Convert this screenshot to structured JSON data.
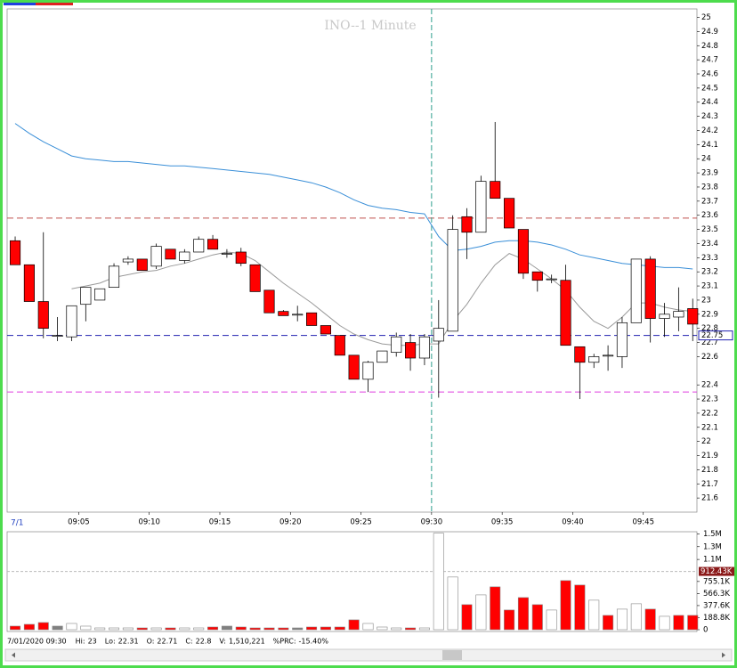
{
  "chart_data": [
    {
      "type": "candlestick",
      "title": "INO--1 Minute",
      "x_start_label": "7/1",
      "x": [
        0,
        1,
        2,
        3,
        4,
        5,
        6,
        7,
        8,
        9,
        10,
        11,
        12,
        13,
        14,
        15,
        16,
        17,
        18,
        19,
        20,
        21,
        22,
        23,
        24,
        25,
        26,
        27,
        28,
        29,
        30,
        31,
        32,
        33,
        34,
        35,
        36,
        37,
        38,
        39,
        40,
        41,
        42,
        43,
        44,
        45,
        46,
        47,
        48
      ],
      "open": [
        23.42,
        23.25,
        22.99,
        22.75,
        22.74,
        22.97,
        23.0,
        23.09,
        23.27,
        23.29,
        23.24,
        23.36,
        23.28,
        23.34,
        23.43,
        23.33,
        23.34,
        23.25,
        23.07,
        22.92,
        22.9,
        22.91,
        22.82,
        22.75,
        22.61,
        22.44,
        22.56,
        22.63,
        22.7,
        22.59,
        22.71,
        22.78,
        23.59,
        23.48,
        23.84,
        23.72,
        23.5,
        23.2,
        23.15,
        23.14,
        22.67,
        22.56,
        22.61,
        22.6,
        22.84,
        23.29,
        22.87,
        22.88,
        22.94
      ],
      "high": [
        23.45,
        23.25,
        23.48,
        22.88,
        22.96,
        23.09,
        23.08,
        23.26,
        23.31,
        23.29,
        23.4,
        23.36,
        23.36,
        23.45,
        23.46,
        23.36,
        23.37,
        23.25,
        23.07,
        22.93,
        22.96,
        22.91,
        22.82,
        22.75,
        22.61,
        22.57,
        22.64,
        22.77,
        22.76,
        22.76,
        23.0,
        23.6,
        23.65,
        23.88,
        24.26,
        23.72,
        23.5,
        23.2,
        23.18,
        23.25,
        22.67,
        22.62,
        22.68,
        22.88,
        23.29,
        23.31,
        22.98,
        23.09,
        23.01
      ],
      "low": [
        23.25,
        22.99,
        22.73,
        22.71,
        22.71,
        22.85,
        23.0,
        23.09,
        23.25,
        23.21,
        23.22,
        23.29,
        23.26,
        23.34,
        23.36,
        23.3,
        23.24,
        23.06,
        22.91,
        22.89,
        22.85,
        22.82,
        22.76,
        22.61,
        22.44,
        22.35,
        22.56,
        22.6,
        22.5,
        22.54,
        22.31,
        22.78,
        23.29,
        23.48,
        23.72,
        23.51,
        23.15,
        23.06,
        23.12,
        22.68,
        22.3,
        22.52,
        22.5,
        22.52,
        22.84,
        22.7,
        22.74,
        22.78,
        22.71
      ],
      "close": [
        23.25,
        22.99,
        22.8,
        22.75,
        22.96,
        23.09,
        23.08,
        23.24,
        23.29,
        23.21,
        23.38,
        23.29,
        23.34,
        23.43,
        23.36,
        23.33,
        23.26,
        23.06,
        22.91,
        22.89,
        22.9,
        22.82,
        22.76,
        22.61,
        22.44,
        22.56,
        22.64,
        22.74,
        22.59,
        22.74,
        22.8,
        23.5,
        23.48,
        23.84,
        23.72,
        23.51,
        23.19,
        23.14,
        23.15,
        22.68,
        22.56,
        22.6,
        22.61,
        22.84,
        23.29,
        22.87,
        22.9,
        22.92,
        22.83
      ],
      "up_color": "#ffffff",
      "down_color": "#ff0000",
      "lines": [
        {
          "color": "#3a8fd8",
          "values": [
            24.25,
            24.18,
            24.12,
            24.07,
            24.02,
            24.0,
            23.99,
            23.98,
            23.98,
            23.97,
            23.96,
            23.95,
            23.95,
            23.94,
            23.93,
            23.92,
            23.91,
            23.9,
            23.89,
            23.87,
            23.85,
            23.83,
            23.8,
            23.76,
            23.71,
            23.67,
            23.65,
            23.64,
            23.62,
            23.61,
            23.45,
            23.35,
            23.36,
            23.38,
            23.41,
            23.42,
            23.42,
            23.41,
            23.39,
            23.36,
            23.32,
            23.3,
            23.28,
            23.26,
            23.25,
            23.24,
            23.23,
            23.23,
            23.22
          ]
        },
        {
          "color": "#999999",
          "values": [
            null,
            null,
            null,
            null,
            23.08,
            23.1,
            23.12,
            23.16,
            23.18,
            23.2,
            23.21,
            23.24,
            23.26,
            23.29,
            23.32,
            23.34,
            23.33,
            23.28,
            23.2,
            23.12,
            23.05,
            22.98,
            22.9,
            22.82,
            22.76,
            22.72,
            22.69,
            22.68,
            22.68,
            22.69,
            22.69,
            22.85,
            22.97,
            23.12,
            23.25,
            23.33,
            23.29,
            23.22,
            23.15,
            23.07,
            22.95,
            22.85,
            22.8,
            22.88,
            22.98,
            22.98,
            22.95,
            22.93,
            22.92
          ]
        }
      ],
      "hlines": [
        {
          "value": 23.58,
          "color": "#c0504d"
        },
        {
          "value": 22.75,
          "color": "#2020b0",
          "labeled": true
        },
        {
          "value": 22.35,
          "color": "#e040e0"
        }
      ],
      "vline": {
        "value": 29.5,
        "color": "#2e9e8e"
      },
      "xlim": [
        -0.57,
        48.3
      ],
      "ylim": [
        21.5,
        25.06
      ],
      "xticks": [
        {
          "value": 4.5,
          "label": "09:05"
        },
        {
          "value": 9.5,
          "label": "09:10"
        },
        {
          "value": 14.5,
          "label": "09:15"
        },
        {
          "value": 19.5,
          "label": "09:20"
        },
        {
          "value": 24.5,
          "label": "09:25"
        },
        {
          "value": 29.5,
          "label": "09:30"
        },
        {
          "value": 34.5,
          "label": "09:35"
        },
        {
          "value": 39.5,
          "label": "09:40"
        },
        {
          "value": 44.5,
          "label": "09:45"
        }
      ],
      "yticks": [
        25,
        24.9,
        24.8,
        24.7,
        24.6,
        24.5,
        24.4,
        24.3,
        24.2,
        24.1,
        24,
        23.9,
        23.8,
        23.7,
        23.6,
        23.5,
        23.4,
        23.3,
        23.2,
        23.1,
        23,
        22.9,
        22.8,
        22.7,
        22.6,
        22.4,
        22.3,
        22.2,
        22.1,
        22,
        21.9,
        21.8,
        21.7,
        21.6
      ]
    },
    {
      "type": "bar",
      "x": [
        0,
        1,
        2,
        3,
        4,
        5,
        6,
        7,
        8,
        9,
        10,
        11,
        12,
        13,
        14,
        15,
        16,
        17,
        18,
        19,
        20,
        21,
        22,
        23,
        24,
        25,
        26,
        27,
        28,
        29,
        30,
        31,
        32,
        33,
        34,
        35,
        36,
        37,
        38,
        39,
        40,
        41,
        42,
        43,
        44,
        45,
        46,
        47,
        48
      ],
      "values": [
        56000,
        84000,
        112000,
        56000,
        98000,
        56000,
        28000,
        28000,
        28000,
        28000,
        28000,
        28000,
        28000,
        28000,
        42000,
        56000,
        42000,
        28000,
        28000,
        28000,
        28000,
        42000,
        42000,
        42000,
        154000,
        98000,
        42000,
        28000,
        28000,
        28000,
        1510221,
        825000,
        392000,
        545000,
        671000,
        308000,
        503000,
        392000,
        308000,
        769000,
        699000,
        462000,
        224000,
        322000,
        406000,
        322000,
        210000,
        224000,
        224000
      ],
      "colors": [
        "#ff0000",
        "#ff0000",
        "#ff0000",
        "#808080",
        "#ffffff",
        "#ffffff",
        "#ffffff",
        "#ffffff",
        "#ffffff",
        "#ff0000",
        "#ffffff",
        "#ff0000",
        "#ffffff",
        "#ffffff",
        "#ff0000",
        "#808080",
        "#ff0000",
        "#ff0000",
        "#ff0000",
        "#ff0000",
        "#808080",
        "#ff0000",
        "#ff0000",
        "#ff0000",
        "#ff0000",
        "#ffffff",
        "#ffffff",
        "#ffffff",
        "#ff0000",
        "#ffffff",
        "#ffffff",
        "#ffffff",
        "#ff0000",
        "#ffffff",
        "#ff0000",
        "#ff0000",
        "#ff0000",
        "#ff0000",
        "#ffffff",
        "#ff0000",
        "#ff0000",
        "#ffffff",
        "#ff0000",
        "#ffffff",
        "#ffffff",
        "#ff0000",
        "#ffffff",
        "#ff0000",
        "#ff0000"
      ],
      "xlim": [
        -0.57,
        48.3
      ],
      "ylim": [
        0,
        1520000
      ],
      "yticks": [
        {
          "value": 1500000,
          "label": "1.5M"
        },
        {
          "value": 1300000,
          "label": "1.3M"
        },
        {
          "value": 1100000,
          "label": "1.1M"
        },
        {
          "value": 755100,
          "label": "755.1K"
        },
        {
          "value": 566300,
          "label": "566.3K"
        },
        {
          "value": 377600,
          "label": "377.6K"
        },
        {
          "value": 188800,
          "label": "188.8K"
        },
        0
      ],
      "marker": {
        "value": 912430,
        "label": "912.43K"
      }
    }
  ],
  "status_bar": {
    "date": "7/01/2020 09:30",
    "items": [
      {
        "label": "Hi:",
        "value": "23"
      },
      {
        "label": "Lo:",
        "value": "22.31"
      },
      {
        "label": "O:",
        "value": "22.71"
      },
      {
        "label": "C:",
        "value": "22.8"
      },
      {
        "label": "V:",
        "value": "1,510,221"
      },
      {
        "label": "%PRC:",
        "value": "-15.40%"
      }
    ]
  }
}
